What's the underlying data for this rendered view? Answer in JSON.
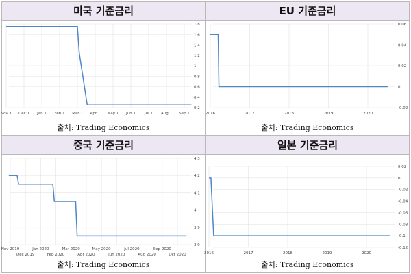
{
  "chart_data": [
    {
      "type": "line",
      "title": "미국 기준금리",
      "source": "출처: Trading Economics",
      "x_labels": [
        "Nov 1",
        "Dec 1",
        "Jan 1",
        "Feb 1",
        "Mar 1",
        "Apr 1",
        "May 1",
        "Jun 1",
        "Jul 1",
        "Aug 1",
        "Sep 1"
      ],
      "y_ticks": [
        "0.2",
        "0.4",
        "0.6",
        "0.8",
        "1",
        "1.2",
        "1.4",
        "1.6",
        "1.8"
      ],
      "ylim": [
        0.2,
        1.8
      ],
      "y_axis_side": "right",
      "grid": true,
      "series": [
        {
          "x": [
            0,
            1,
            2,
            3,
            4,
            4.1,
            4.55,
            5,
            6,
            7,
            8,
            9,
            10,
            10.4
          ],
          "y": [
            1.75,
            1.75,
            1.75,
            1.75,
            1.75,
            1.25,
            0.25,
            0.25,
            0.25,
            0.25,
            0.25,
            0.25,
            0.25,
            0.25
          ]
        }
      ]
    },
    {
      "type": "line",
      "title": "EU 기준금리",
      "source": "출처: Trading Economics",
      "x_labels": [
        "2016",
        "2017",
        "2018",
        "2019",
        "2020"
      ],
      "y_ticks": [
        "-0.02",
        "0",
        "0.02",
        "0.04",
        "0.06"
      ],
      "ylim": [
        -0.02,
        0.06
      ],
      "y_axis_side": "right",
      "grid": true,
      "series": [
        {
          "x": [
            0,
            0.2,
            0.22,
            4.5
          ],
          "y": [
            0.05,
            0.05,
            0,
            0
          ]
        }
      ]
    },
    {
      "type": "line",
      "title": "중국 기준금리",
      "source": "출처: Trading Economics",
      "x_labels": [
        "Nov 2019",
        "Dec 2019",
        "Jan 2020",
        "Feb 2020",
        "Mar 2020",
        "Apr 2020",
        "May 2020",
        "Jun 2020",
        "Jul 2020",
        "Aug 2020",
        "Sep 2020",
        "Oct 2020"
      ],
      "y_ticks": [
        "3.9",
        "3.9",
        "4",
        "4.1",
        "4.2",
        "4.3"
      ],
      "ylim": [
        3.8,
        4.3
      ],
      "y_axis_side": "right",
      "grid": true,
      "series": [
        {
          "x": [
            -0.1,
            0.45,
            0.55,
            2.8,
            2.9,
            4.3,
            4.4,
            11.6
          ],
          "y": [
            4.2,
            4.2,
            4.15,
            4.15,
            4.05,
            4.05,
            3.85,
            3.85
          ]
        }
      ]
    },
    {
      "type": "line",
      "title": "일본 기준금리",
      "source": "출처: Trading Economics",
      "x_labels": [
        "2016",
        "2017",
        "2018",
        "2019",
        "2020"
      ],
      "y_ticks": [
        "-0.12",
        "-0.1",
        "-0.08",
        "-0.06",
        "-0.04",
        "-0.02",
        "0",
        "0.02"
      ],
      "ylim": [
        -0.12,
        0.02
      ],
      "y_axis_side": "right",
      "grid": true,
      "series": [
        {
          "x": [
            0,
            0.05,
            0.12,
            4.6
          ],
          "y": [
            0,
            0,
            -0.1,
            -0.1
          ]
        }
      ]
    }
  ]
}
